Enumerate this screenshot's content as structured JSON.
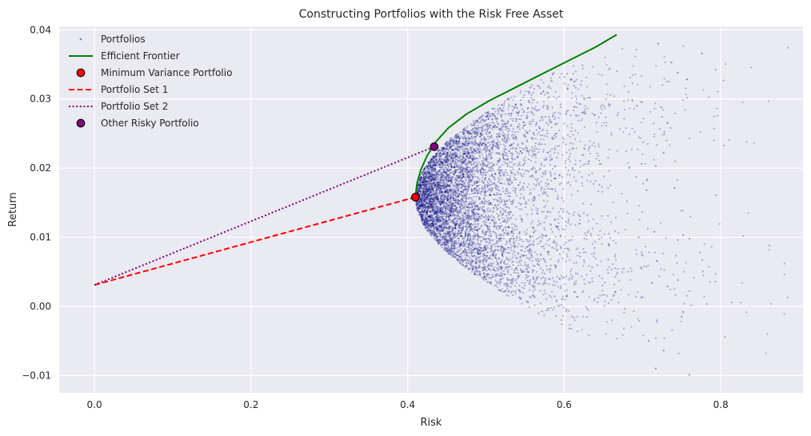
{
  "chart_data": {
    "type": "scatter",
    "title": "Constructing Portfolios with the Risk Free Asset",
    "xlabel": "Risk",
    "ylabel": "Return",
    "xlim": [
      -0.045,
      0.905
    ],
    "ylim": [
      -0.0125,
      0.0405
    ],
    "x_ticks": [
      0.0,
      0.2,
      0.4,
      0.6,
      0.8
    ],
    "x_tick_labels": [
      "0.0",
      "0.2",
      "0.4",
      "0.6",
      "0.8"
    ],
    "y_ticks": [
      -0.01,
      0.0,
      0.01,
      0.02,
      0.03,
      0.04
    ],
    "y_tick_labels": [
      "−0.01",
      "0.00",
      "0.01",
      "0.02",
      "0.03",
      "0.04"
    ],
    "grid": true,
    "legend_position": "top-left",
    "background_color": "#eaeaf2",
    "series": [
      {
        "name": "Portfolios",
        "kind": "scatter-cloud",
        "color": "#00007f",
        "vertex": [
          0.41,
          0.0158
        ],
        "asymptote_slope": 0.043,
        "return_range": [
          -0.01,
          0.038
        ],
        "notable_points": [
          [
            0.862,
            0.0088
          ],
          [
            0.776,
            0.0366
          ],
          [
            0.72,
            0.038
          ],
          [
            0.76,
            -0.0099
          ],
          [
            0.717,
            -0.009
          ],
          [
            0.727,
            -0.0064
          ],
          [
            0.76,
            0.0098
          ],
          [
            0.752,
            0.0103
          ],
          [
            0.745,
            0.0338
          ],
          [
            0.737,
            0.0353
          ],
          [
            0.693,
            0.029
          ],
          [
            0.699,
            0.0206
          ],
          [
            0.724,
            0.0288
          ],
          [
            0.745,
            0.0096
          ],
          [
            0.708,
            -0.005
          ],
          [
            0.75,
            -0.0015
          ],
          [
            0.752,
            -0.0008
          ],
          [
            0.745,
            0.0038
          ],
          [
            0.732,
            0.0029
          ],
          [
            0.727,
            0.0222
          ],
          [
            0.695,
            0.01
          ],
          [
            0.741,
            0.0171
          ],
          [
            0.705,
            0.0168
          ],
          [
            0.712,
            0.0034
          ],
          [
            0.715,
            0.0108
          ],
          [
            0.7,
            0.0013
          ],
          [
            0.717,
            0.0203
          ]
        ]
      },
      {
        "name": "Efficient Frontier",
        "kind": "line",
        "color": "#008000",
        "style": "solid",
        "x": [
          0.41,
          0.412,
          0.417,
          0.425,
          0.436,
          0.452,
          0.475,
          0.505,
          0.54,
          0.575,
          0.61,
          0.64,
          0.667
        ],
        "y": [
          0.0158,
          0.0178,
          0.0198,
          0.0218,
          0.0238,
          0.0258,
          0.0278,
          0.0298,
          0.0318,
          0.0338,
          0.0358,
          0.0375,
          0.0393
        ]
      },
      {
        "name": "Minimum Variance Portfolio",
        "kind": "marker",
        "color": "#ff0000",
        "x": [
          0.41
        ],
        "y": [
          0.0158
        ]
      },
      {
        "name": "Portfolio Set 1",
        "kind": "line",
        "color": "#ff0000",
        "style": "dashed",
        "x": [
          0.0,
          0.41
        ],
        "y": [
          0.0031,
          0.0158
        ]
      },
      {
        "name": "Portfolio Set 2",
        "kind": "line",
        "color": "#800080",
        "style": "dotted",
        "x": [
          0.0,
          0.434
        ],
        "y": [
          0.0031,
          0.0231
        ]
      },
      {
        "name": "Other Risky Portfolio",
        "kind": "marker",
        "color": "#800080",
        "x": [
          0.434
        ],
        "y": [
          0.0231
        ]
      }
    ]
  }
}
